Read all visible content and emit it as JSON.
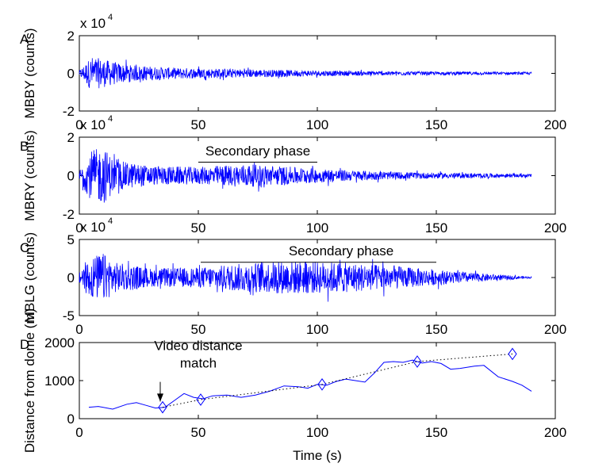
{
  "figure": {
    "background": "#ffffff",
    "axis_color": "#000000",
    "trace_color": "#0000ff"
  },
  "chart_data": [
    {
      "panel_letter": "A",
      "type": "line",
      "ylabel": "MBBY (counts)",
      "y_multiplier_label": "x 10",
      "y_multiplier_exponent": "4",
      "xlim": [
        0,
        200
      ],
      "ylim": [
        -2,
        2
      ],
      "xticks": [
        "0",
        "50",
        "100",
        "150",
        "200"
      ],
      "yticks": [
        "-2",
        "0",
        "2"
      ],
      "series": [
        {
          "style": "seismogram",
          "x": [
            0,
            5,
            10,
            20,
            40,
            60,
            80,
            100,
            120,
            150,
            190
          ],
          "amplitude": [
            0.15,
            0.9,
            0.75,
            0.45,
            0.3,
            0.25,
            0.2,
            0.15,
            0.12,
            0.09,
            0.07
          ]
        }
      ]
    },
    {
      "panel_letter": "B",
      "type": "line",
      "ylabel": "MBRY (counts)",
      "y_multiplier_label": "x 10",
      "y_multiplier_exponent": "4",
      "xlim": [
        0,
        200
      ],
      "ylim": [
        -2,
        2
      ],
      "xticks": [
        "0",
        "50",
        "100",
        "150",
        "200"
      ],
      "yticks": [
        "-2",
        "0",
        "2"
      ],
      "annotations": [
        {
          "text": "Secondary phase",
          "x": 75,
          "y": 1.05,
          "line_x": [
            50,
            100
          ],
          "line_y": 0.7
        }
      ],
      "series": [
        {
          "style": "seismogram",
          "x": [
            0,
            5,
            10,
            15,
            30,
            50,
            70,
            90,
            110,
            130,
            150,
            190
          ],
          "amplitude": [
            0.3,
            1.3,
            1.5,
            0.8,
            0.5,
            0.45,
            0.6,
            0.45,
            0.3,
            0.2,
            0.15,
            0.08
          ]
        }
      ]
    },
    {
      "panel_letter": "C",
      "type": "line",
      "ylabel": "MBLG (counts)",
      "y_multiplier_label": "x 10",
      "y_multiplier_exponent": "4",
      "xlim": [
        0,
        200
      ],
      "ylim": [
        -5,
        5
      ],
      "xticks": [
        "0",
        "50",
        "100",
        "150",
        "200"
      ],
      "yticks": [
        "-5",
        "0",
        "5"
      ],
      "annotations": [
        {
          "text": "Secondary phase",
          "x": 110,
          "y": 2.9,
          "line_x": [
            51,
            150
          ],
          "line_y": 2.0
        }
      ],
      "series": [
        {
          "style": "seismogram",
          "x": [
            0,
            5,
            10,
            15,
            30,
            50,
            70,
            90,
            110,
            130,
            150,
            170,
            190
          ],
          "amplitude": [
            1.2,
            2.8,
            3.2,
            2.0,
            1.2,
            1.3,
            1.9,
            2.2,
            2.0,
            1.6,
            1.0,
            0.5,
            0.1
          ]
        }
      ]
    },
    {
      "panel_letter": "D",
      "type": "line",
      "ylabel": "Distance from dome (m)",
      "xlabel": "Time (s)",
      "xlim": [
        0,
        200
      ],
      "ylim": [
        0,
        2000
      ],
      "xticks": [
        "0",
        "50",
        "100",
        "150",
        "200"
      ],
      "yticks": [
        "0",
        "1000",
        "2000"
      ],
      "annotations": [
        {
          "text_lines": [
            "Video distance",
            "match"
          ],
          "x": 50,
          "y": 1800,
          "arrow_to": [
            34,
            450
          ]
        }
      ],
      "series": [
        {
          "style": "solid",
          "x": [
            4,
            8,
            14,
            20,
            24,
            28,
            32,
            36,
            40,
            44,
            48,
            52,
            56,
            62,
            68,
            74,
            80,
            86,
            92,
            96,
            100,
            104,
            108,
            112,
            116,
            120,
            124,
            128,
            132,
            136,
            140,
            144,
            148,
            152,
            156,
            160,
            166,
            170,
            176,
            182,
            186,
            190
          ],
          "y": [
            300,
            320,
            250,
            380,
            420,
            350,
            280,
            300,
            480,
            660,
            560,
            520,
            600,
            620,
            560,
            620,
            720,
            860,
            840,
            800,
            900,
            880,
            980,
            1040,
            1000,
            960,
            1200,
            1480,
            1500,
            1480,
            1540,
            1460,
            1500,
            1450,
            1300,
            1320,
            1380,
            1400,
            1100,
            980,
            880,
            720
          ]
        },
        {
          "style": "dotted",
          "marker": "diamond",
          "x": [
            35,
            51,
            102,
            142,
            182
          ],
          "y": [
            300,
            500,
            900,
            1500,
            1700
          ]
        }
      ]
    }
  ]
}
